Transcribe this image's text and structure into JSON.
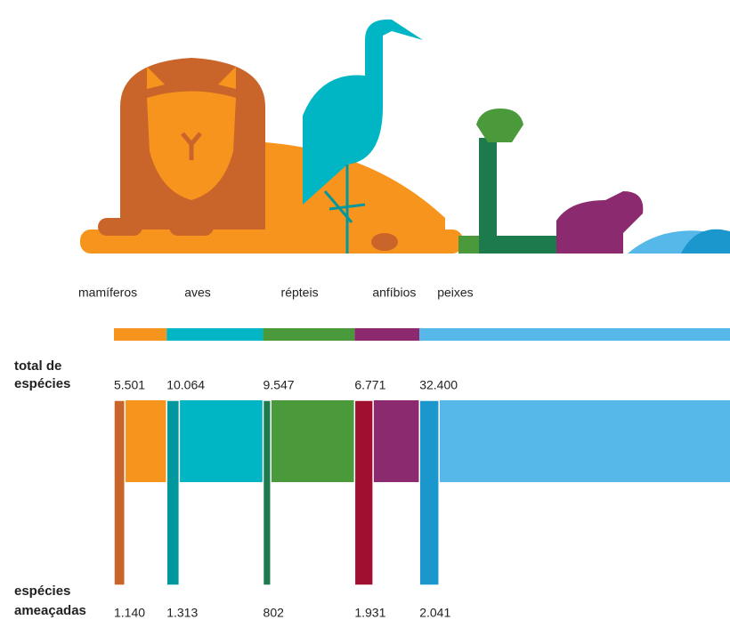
{
  "chart_data": {
    "type": "proportional-bars",
    "categories": [
      "mamíferos",
      "aves",
      "répteis",
      "anfíbios",
      "peixes"
    ],
    "series": [
      {
        "name": [
          "total de",
          "espécies"
        ],
        "colors": [
          "#f7941d",
          "#00b6c4",
          "#4a9a3c",
          "#8b2a6f",
          "#56b7e9"
        ],
        "values": [
          5501,
          10064,
          9547,
          6771,
          32400
        ],
        "value_labels": [
          "5.501",
          "10.064",
          "9.547",
          "6.771",
          "32.400"
        ]
      },
      {
        "name": [
          "espécies",
          "ameaçadas"
        ],
        "colors": [
          "#c9652b",
          "#00979f",
          "#1d7a4c",
          "#a00f30",
          "#1b97cd"
        ],
        "values": [
          1140,
          1313,
          802,
          1931,
          2041
        ],
        "value_labels": [
          "1.140",
          "1.313",
          "802",
          "1.931",
          "2.041"
        ]
      }
    ]
  }
}
